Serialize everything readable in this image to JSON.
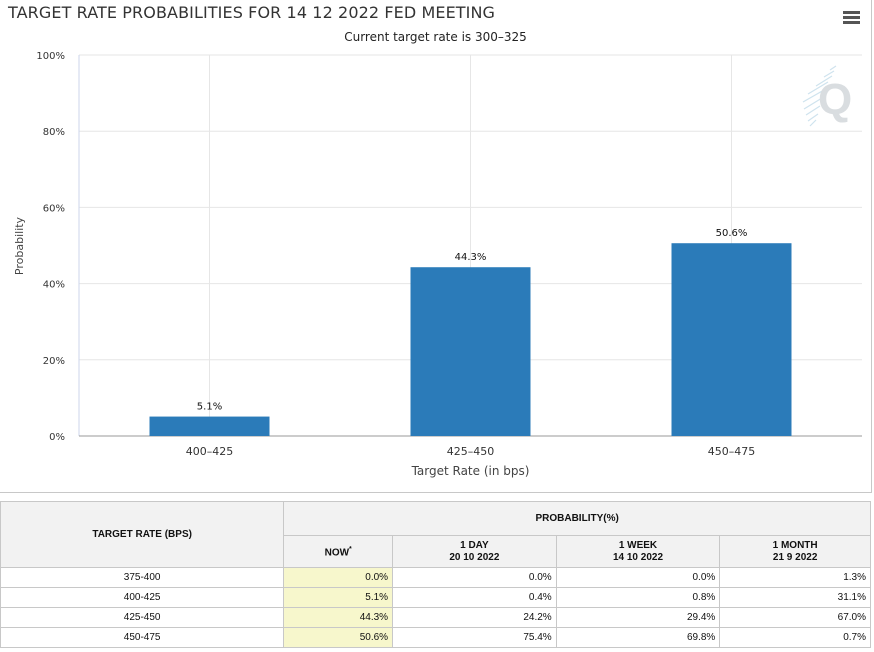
{
  "header": {
    "title": "TARGET RATE PROBABILITIES FOR 14 12 2022 FED MEETING",
    "subtitle": "Current target rate is 300–325",
    "menu_icon": "hamburger-menu-icon",
    "watermark_icon": "cme-q-logo-icon"
  },
  "chart_data": {
    "type": "bar",
    "categories": [
      "400–425",
      "425–450",
      "450–475"
    ],
    "values": [
      5.1,
      44.3,
      50.6
    ],
    "data_labels": [
      "5.1%",
      "44.3%",
      "50.6%"
    ],
    "xlabel": "Target Rate (in bps)",
    "ylabel": "Probability",
    "ylim": [
      0,
      100
    ],
    "yticks": [
      0,
      20,
      40,
      60,
      80,
      100
    ],
    "ytick_labels": [
      "0%",
      "20%",
      "40%",
      "60%",
      "80%",
      "100%"
    ],
    "grid": true,
    "bar_color": "#2b7bb9"
  },
  "table": {
    "rate_header": "TARGET RATE (BPS)",
    "prob_header": "PROBABILITY(%)",
    "columns": [
      {
        "line1": "NOW",
        "line2": "",
        "sup": "*"
      },
      {
        "line1": "1 DAY",
        "line2": "20 10 2022",
        "sup": ""
      },
      {
        "line1": "1 WEEK",
        "line2": "14 10 2022",
        "sup": ""
      },
      {
        "line1": "1 MONTH",
        "line2": "21 9 2022",
        "sup": ""
      }
    ],
    "rows": [
      {
        "rate": "375-400",
        "values": [
          "0.0%",
          "0.0%",
          "0.0%",
          "1.3%"
        ]
      },
      {
        "rate": "400-425",
        "values": [
          "5.1%",
          "0.4%",
          "0.8%",
          "31.1%"
        ]
      },
      {
        "rate": "425-450",
        "values": [
          "44.3%",
          "24.2%",
          "29.4%",
          "67.0%"
        ]
      },
      {
        "rate": "450-475",
        "values": [
          "50.6%",
          "75.4%",
          "69.8%",
          "0.7%"
        ]
      }
    ],
    "now_highlight_color": "#f7f7cc",
    "header_bg_color": "#f2f2f2"
  }
}
